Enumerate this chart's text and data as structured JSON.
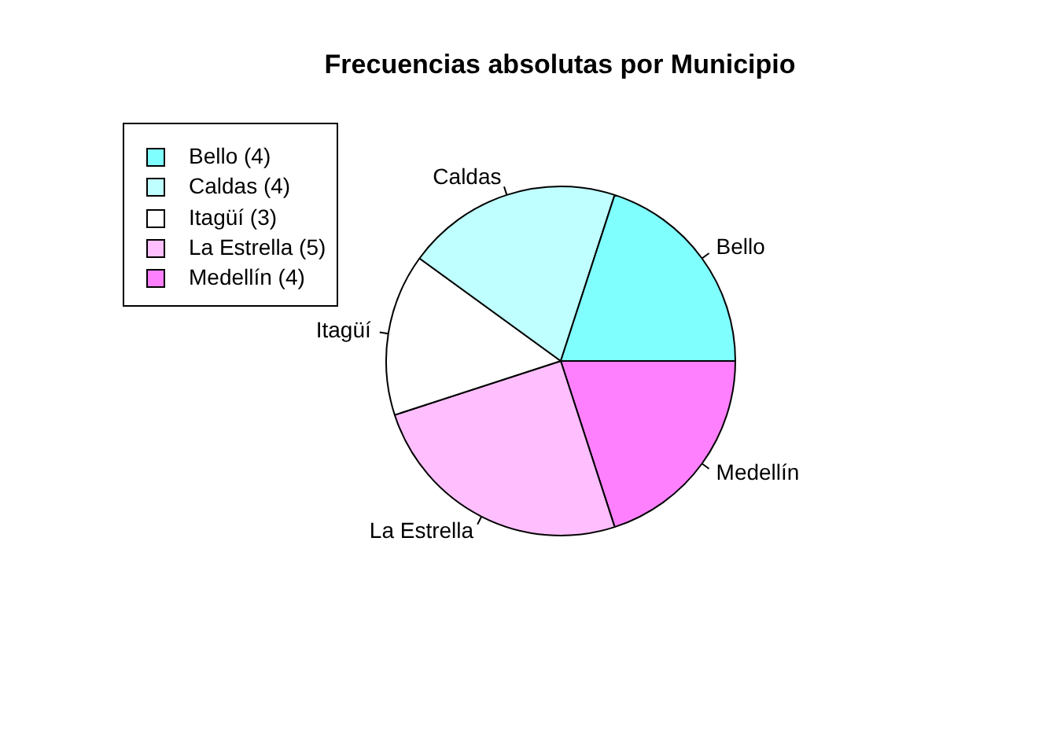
{
  "chart_data": {
    "type": "pie",
    "title": "Frecuencias absolutas por Municipio",
    "categories": [
      "Bello",
      "Caldas",
      "Itagüí",
      "La Estrella",
      "Medellín"
    ],
    "values": [
      4,
      4,
      3,
      5,
      4
    ],
    "value_labels": [
      "(4)",
      "(4)",
      "(3)",
      "(5)",
      "(4)"
    ],
    "colors": [
      "#80ffff",
      "#bfffff",
      "#ffffff",
      "#ffbfff",
      "#ff80ff"
    ],
    "legend": "top left"
  }
}
